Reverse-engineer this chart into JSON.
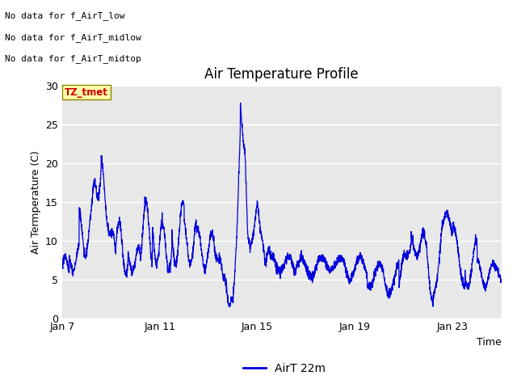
{
  "title": "Air Temperature Profile",
  "xlabel": "Time",
  "ylabel": "Air Termperature (C)",
  "xlim_days": [
    7,
    25
  ],
  "ylim": [
    0,
    30
  ],
  "yticks": [
    0,
    5,
    10,
    15,
    20,
    25,
    30
  ],
  "xtick_labels": [
    "Jan 7",
    "Jan 11",
    "Jan 15",
    "Jan 19",
    "Jan 23"
  ],
  "xtick_days": [
    7,
    11,
    15,
    19,
    23
  ],
  "bg_color": "#e8e8e8",
  "line_color": "#0000dd",
  "legend_label": "AirT 22m",
  "no_data_texts": [
    "No data for f_AirT_low",
    "No data for f_AirT_midlow",
    "No data for f_AirT_midtop"
  ],
  "legend_box_text": "TZ_tmet",
  "legend_box_color": "#cc0000",
  "legend_box_bg": "#ffffaa",
  "legend_box_edge": "#888800"
}
